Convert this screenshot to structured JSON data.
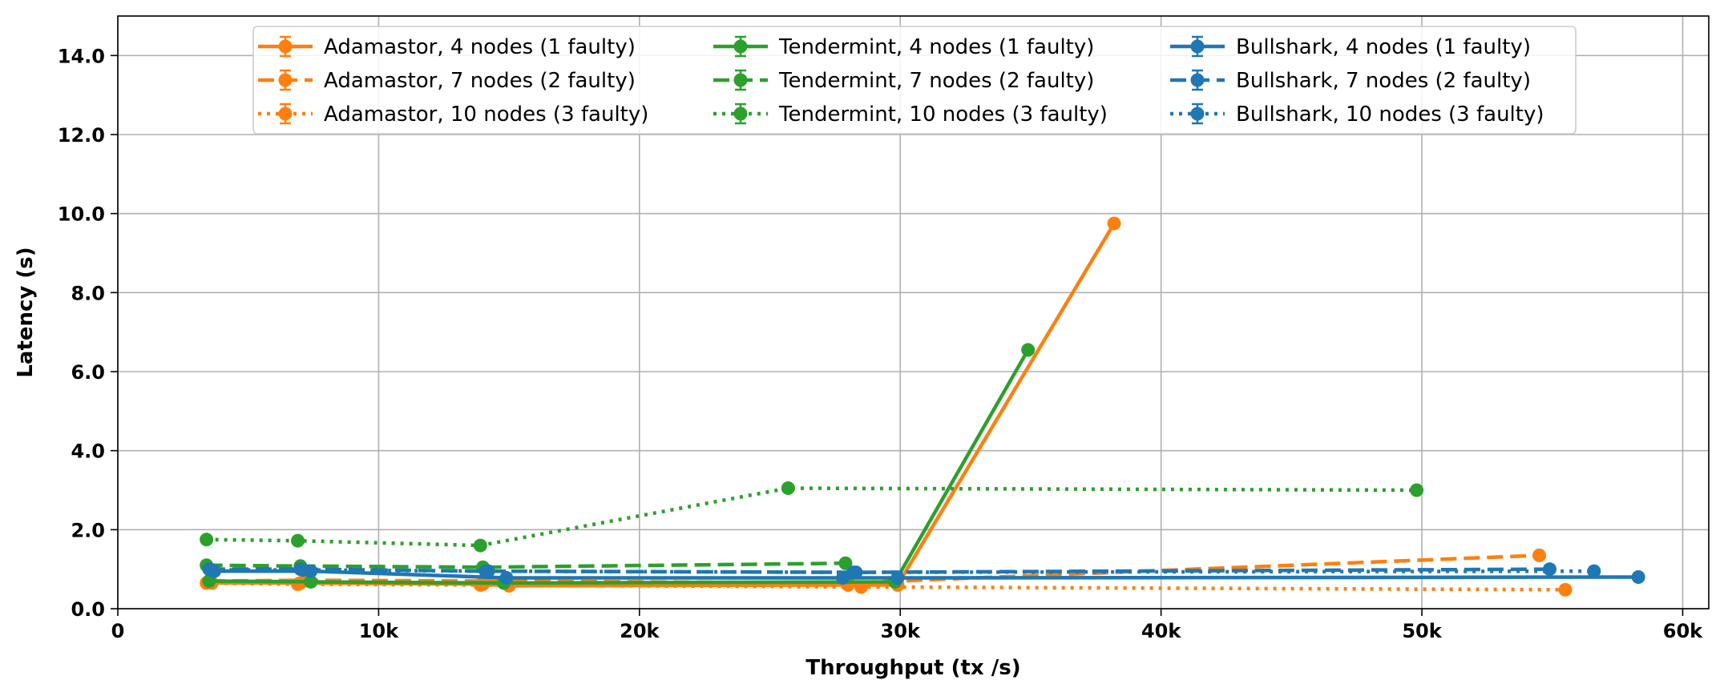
{
  "chart_data": {
    "type": "line",
    "title": "",
    "xlabel": "Throughput (tx /s)",
    "ylabel": "Latency (s)",
    "xlim": [
      0,
      61000
    ],
    "ylim": [
      0,
      15
    ],
    "grid": true,
    "legend_position": "top-center",
    "legend_columns": 3,
    "x_ticks": [
      {
        "value": 0,
        "label": "0"
      },
      {
        "value": 10000,
        "label": "10k"
      },
      {
        "value": 20000,
        "label": "20k"
      },
      {
        "value": 30000,
        "label": "30k"
      },
      {
        "value": 40000,
        "label": "40k"
      },
      {
        "value": 50000,
        "label": "50k"
      },
      {
        "value": 60000,
        "label": "60k"
      }
    ],
    "y_ticks": [
      {
        "value": 0,
        "label": "0.0"
      },
      {
        "value": 2,
        "label": "2.0"
      },
      {
        "value": 4,
        "label": "4.0"
      },
      {
        "value": 6,
        "label": "6.0"
      },
      {
        "value": 8,
        "label": "8.0"
      },
      {
        "value": 10,
        "label": "10.0"
      },
      {
        "value": 12,
        "label": "12.0"
      },
      {
        "value": 14,
        "label": "14.0"
      }
    ],
    "series": [
      {
        "name": "Adamastor, 4 nodes (1 faulty)",
        "color": "#ff7f0e",
        "style": "solid",
        "points": [
          [
            3600,
            0.65
          ],
          [
            7000,
            0.65
          ],
          [
            14000,
            0.62
          ],
          [
            15000,
            0.58
          ],
          [
            28000,
            0.6
          ],
          [
            29900,
            0.6
          ],
          [
            38200,
            9.75
          ]
        ]
      },
      {
        "name": "Adamastor, 7 nodes (2 faulty)",
        "color": "#ff7f0e",
        "style": "dashed",
        "points": [
          [
            3500,
            0.7
          ],
          [
            7200,
            0.72
          ],
          [
            14100,
            0.7
          ],
          [
            28000,
            0.65
          ],
          [
            54500,
            1.35
          ]
        ]
      },
      {
        "name": "Adamastor, 10 nodes (3 faulty)",
        "color": "#ff7f0e",
        "style": "dotted",
        "points": [
          [
            3400,
            0.65
          ],
          [
            6900,
            0.62
          ],
          [
            13900,
            0.6
          ],
          [
            28500,
            0.55
          ],
          [
            55500,
            0.48
          ]
        ]
      },
      {
        "name": "Tendermint, 4 nodes (1 faulty)",
        "color": "#2ca02c",
        "style": "solid",
        "points": [
          [
            3500,
            0.7
          ],
          [
            7400,
            0.68
          ],
          [
            14800,
            0.65
          ],
          [
            29800,
            0.68
          ],
          [
            34900,
            6.55
          ]
        ]
      },
      {
        "name": "Tendermint, 7 nodes (2 faulty)",
        "color": "#2ca02c",
        "style": "dashed",
        "points": [
          [
            3400,
            1.1
          ],
          [
            7000,
            1.08
          ],
          [
            14000,
            1.05
          ],
          [
            27900,
            1.15
          ]
        ]
      },
      {
        "name": "Tendermint, 10 nodes (3 faulty)",
        "color": "#2ca02c",
        "style": "dotted",
        "points": [
          [
            3400,
            1.75
          ],
          [
            6900,
            1.72
          ],
          [
            13900,
            1.6
          ],
          [
            25700,
            3.05
          ],
          [
            49800,
            3.0
          ]
        ]
      },
      {
        "name": "Bullshark, 4 nodes (1 faulty)",
        "color": "#1f77b4",
        "style": "solid",
        "points": [
          [
            3700,
            0.95
          ],
          [
            7400,
            0.95
          ],
          [
            14900,
            0.78
          ],
          [
            27800,
            0.78
          ],
          [
            29900,
            0.78
          ],
          [
            58300,
            0.8
          ]
        ]
      },
      {
        "name": "Bullshark, 7 nodes (2 faulty)",
        "color": "#1f77b4",
        "style": "dashed",
        "points": [
          [
            3500,
            1.0
          ],
          [
            7000,
            1.0
          ],
          [
            14100,
            0.95
          ],
          [
            28300,
            0.92
          ],
          [
            54900,
            1.0
          ]
        ]
      },
      {
        "name": "Bullshark, 10 nodes (3 faulty)",
        "color": "#1f77b4",
        "style": "dotted",
        "points": [
          [
            3600,
            0.98
          ],
          [
            7100,
            0.98
          ],
          [
            14200,
            0.95
          ],
          [
            28200,
            0.92
          ],
          [
            56600,
            0.95
          ]
        ]
      }
    ]
  }
}
